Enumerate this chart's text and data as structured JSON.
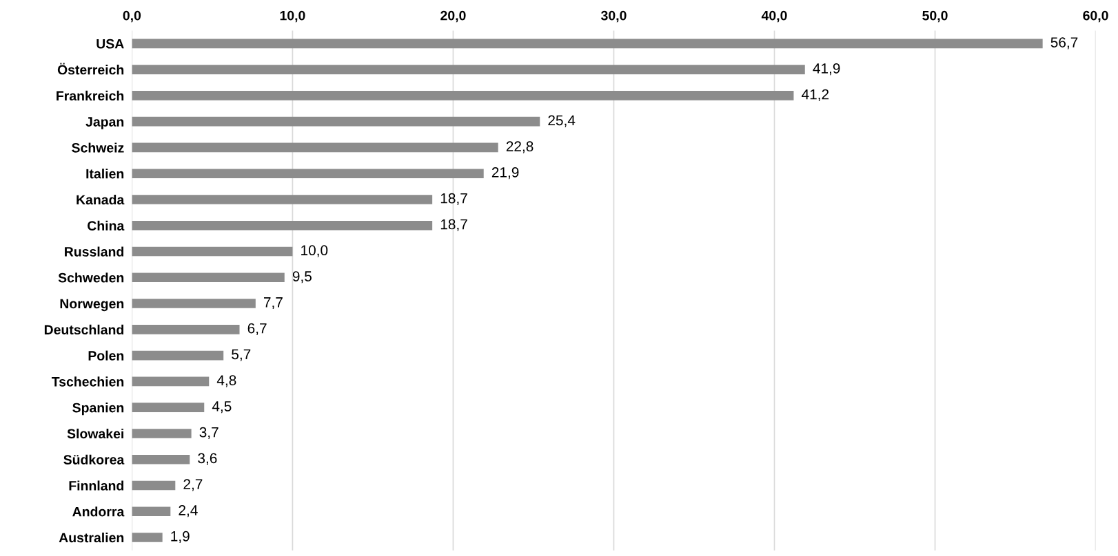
{
  "chart_data": {
    "type": "bar",
    "orientation": "horizontal",
    "categories": [
      "USA",
      "Österreich",
      "Frankreich",
      "Japan",
      "Schweiz",
      "Italien",
      "Kanada",
      "China",
      "Russland",
      "Schweden",
      "Norwegen",
      "Deutschland",
      "Polen",
      "Tschechien",
      "Spanien",
      "Slowakei",
      "Südkorea",
      "Finnland",
      "Andorra",
      "Australien"
    ],
    "values": [
      56.7,
      41.9,
      41.2,
      25.4,
      22.8,
      21.9,
      18.7,
      18.7,
      10.0,
      9.5,
      7.7,
      6.7,
      5.7,
      4.8,
      4.5,
      3.7,
      3.6,
      2.7,
      2.4,
      1.9
    ],
    "value_labels": [
      "56,7",
      "41,9",
      "41,2",
      "25,4",
      "22,8",
      "21,9",
      "18,7",
      "18,7",
      "10,0",
      "9,5",
      "7,7",
      "6,7",
      "5,7",
      "4,8",
      "4,5",
      "3,7",
      "3,6",
      "2,7",
      "2,4",
      "1,9"
    ],
    "color": "#8c8c8c",
    "xlim": [
      0,
      60
    ],
    "xticks": [
      {
        "value": 0,
        "label": "0,0"
      },
      {
        "value": 10,
        "label": "10,0"
      },
      {
        "value": 20,
        "label": "20,0"
      },
      {
        "value": 30,
        "label": "30,0"
      },
      {
        "value": 40,
        "label": "40,0"
      },
      {
        "value": 50,
        "label": "50,0"
      },
      {
        "value": 60,
        "label": "60,0"
      }
    ],
    "grid": "x"
  }
}
